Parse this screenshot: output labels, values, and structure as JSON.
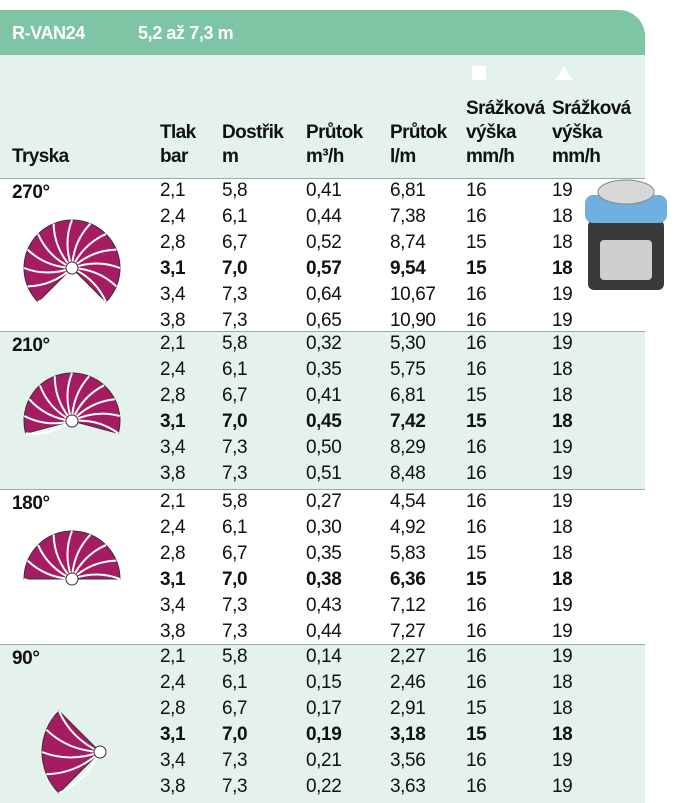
{
  "header": {
    "title": "R-VAN24",
    "range": "5,2 až 7,3 m"
  },
  "columns": [
    [
      "Tryska"
    ],
    [
      "Tlak",
      "bar"
    ],
    [
      "Dostřik",
      "m"
    ],
    [
      "Průtok",
      "m³/h"
    ],
    [
      "Průtok",
      "l/m"
    ],
    [
      "Srážková",
      "výška",
      "mm/h"
    ],
    [
      "Srážková",
      "výška",
      "mm/h"
    ]
  ],
  "groups": [
    {
      "label": "270°",
      "rows": [
        [
          "2,1",
          "5,8",
          "0,41",
          "6,81",
          "16",
          "19"
        ],
        [
          "2,4",
          "6,1",
          "0,44",
          "7,38",
          "16",
          "18"
        ],
        [
          "2,8",
          "6,7",
          "0,52",
          "8,74",
          "15",
          "18"
        ],
        [
          "3,1",
          "7,0",
          "0,57",
          "9,54",
          "15",
          "18"
        ],
        [
          "3,4",
          "7,3",
          "0,64",
          "10,67",
          "16",
          "19"
        ],
        [
          "3,8",
          "7,3",
          "0,65",
          "10,90",
          "16",
          "19"
        ]
      ]
    },
    {
      "label": "210°",
      "rows": [
        [
          "2,1",
          "5,8",
          "0,32",
          "5,30",
          "16",
          "19"
        ],
        [
          "2,4",
          "6,1",
          "0,35",
          "5,75",
          "16",
          "18"
        ],
        [
          "2,8",
          "6,7",
          "0,41",
          "6,81",
          "15",
          "18"
        ],
        [
          "3,1",
          "7,0",
          "0,45",
          "7,42",
          "15",
          "18"
        ],
        [
          "3,4",
          "7,3",
          "0,50",
          "8,29",
          "16",
          "19"
        ],
        [
          "3,8",
          "7,3",
          "0,51",
          "8,48",
          "16",
          "19"
        ]
      ]
    },
    {
      "label": "180°",
      "rows": [
        [
          "2,1",
          "5,8",
          "0,27",
          "4,54",
          "16",
          "19"
        ],
        [
          "2,4",
          "6,1",
          "0,30",
          "4,92",
          "16",
          "18"
        ],
        [
          "2,8",
          "6,7",
          "0,35",
          "5,83",
          "15",
          "18"
        ],
        [
          "3,1",
          "7,0",
          "0,38",
          "6,36",
          "15",
          "18"
        ],
        [
          "3,4",
          "7,3",
          "0,43",
          "7,12",
          "16",
          "19"
        ],
        [
          "3,8",
          "7,3",
          "0,44",
          "7,27",
          "16",
          "19"
        ]
      ]
    },
    {
      "label": "90°",
      "rows": [
        [
          "2,1",
          "5,8",
          "0,14",
          "2,27",
          "16",
          "19"
        ],
        [
          "2,4",
          "6,1",
          "0,15",
          "2,46",
          "16",
          "18"
        ],
        [
          "2,8",
          "6,7",
          "0,17",
          "2,91",
          "15",
          "18"
        ],
        [
          "3,1",
          "7,0",
          "0,19",
          "3,18",
          "15",
          "18"
        ],
        [
          "3,4",
          "7,3",
          "0,21",
          "3,56",
          "16",
          "19"
        ],
        [
          "3,8",
          "7,3",
          "0,22",
          "3,63",
          "16",
          "19"
        ]
      ]
    }
  ]
}
